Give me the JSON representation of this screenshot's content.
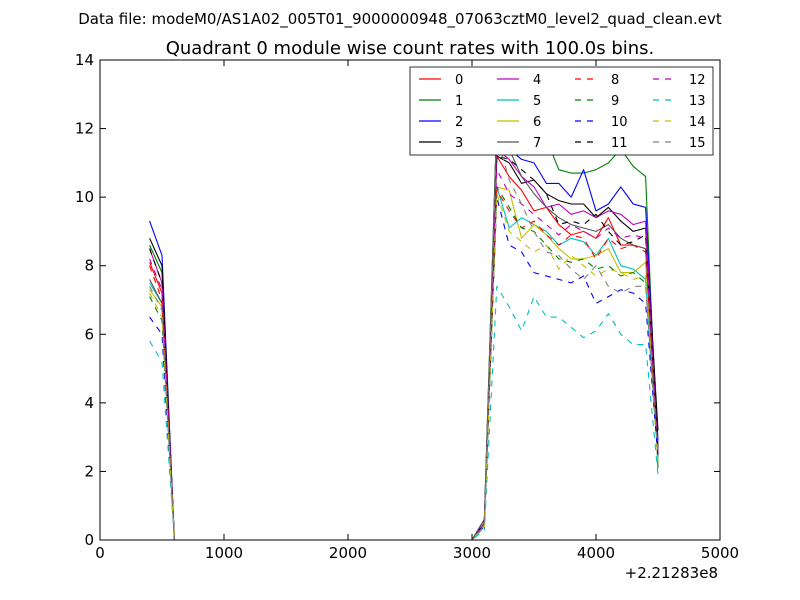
{
  "figure": {
    "suptitle": "Data file: modeM0/AS1A02_005T01_9000000948_07063cztM0_level2_quad_clean.evt"
  },
  "chart_data": {
    "type": "line",
    "title": "Quadrant 0 module wise count rates with 100.0s bins.",
    "xlabel": "",
    "ylabel": "",
    "x_offset_label": "+2.21283e8",
    "xlim": [
      0,
      5000
    ],
    "ylim": [
      0,
      14
    ],
    "xticks": [
      0,
      1000,
      2000,
      3000,
      4000,
      5000
    ],
    "yticks": [
      0,
      2,
      4,
      6,
      8,
      10,
      12,
      14
    ],
    "x": [
      400,
      500,
      600,
      3000,
      3100,
      3200,
      3300,
      3400,
      3500,
      3600,
      3700,
      3800,
      3900,
      4000,
      4100,
      4200,
      4300,
      4400,
      4500
    ],
    "legend_location": "upper-right",
    "legend_columns": 4,
    "series": [
      {
        "name": "0",
        "color": "#ff0000",
        "style": "solid",
        "values": [
          8.1,
          7.2,
          0.0,
          0.0,
          0.5,
          11.2,
          10.6,
          10.2,
          9.6,
          9.7,
          9.2,
          8.9,
          9.0,
          8.8,
          9.4,
          8.6,
          8.6,
          8.5,
          2.7
        ]
      },
      {
        "name": "1",
        "color": "#008000",
        "style": "solid",
        "values": [
          8.6,
          7.8,
          0.0,
          0.0,
          0.6,
          12.3,
          12.2,
          12.5,
          12.0,
          11.7,
          10.8,
          10.7,
          10.7,
          10.8,
          11.0,
          11.4,
          10.9,
          10.6,
          2.1
        ]
      },
      {
        "name": "2",
        "color": "#0000ff",
        "style": "solid",
        "values": [
          9.3,
          8.3,
          0.0,
          0.0,
          0.6,
          11.8,
          11.4,
          11.1,
          11.0,
          10.4,
          10.4,
          10.0,
          10.8,
          9.6,
          9.8,
          10.3,
          9.8,
          9.7,
          2.9
        ]
      },
      {
        "name": "3",
        "color": "#000000",
        "style": "solid",
        "values": [
          8.8,
          8.0,
          0.0,
          0.0,
          0.5,
          11.2,
          11.0,
          10.4,
          10.5,
          10.1,
          9.9,
          9.8,
          9.8,
          9.4,
          9.7,
          9.3,
          9.0,
          9.1,
          3.2
        ]
      },
      {
        "name": "4",
        "color": "#bf00bf",
        "style": "solid",
        "values": [
          8.5,
          7.5,
          0.0,
          0.0,
          0.5,
          11.4,
          11.1,
          10.6,
          10.3,
          9.7,
          9.8,
          9.5,
          9.6,
          9.4,
          9.6,
          9.5,
          9.2,
          9.3,
          2.5
        ]
      },
      {
        "name": "5",
        "color": "#00bfbf",
        "style": "solid",
        "values": [
          7.5,
          6.9,
          0.0,
          0.0,
          0.4,
          10.3,
          9.1,
          9.4,
          9.2,
          9.0,
          8.6,
          8.8,
          8.7,
          8.3,
          8.8,
          8.0,
          7.9,
          7.6,
          2.3
        ]
      },
      {
        "name": "6",
        "color": "#bfbf00",
        "style": "solid",
        "values": [
          7.3,
          6.8,
          0.0,
          0.0,
          0.4,
          10.3,
          10.2,
          8.8,
          9.2,
          8.9,
          8.5,
          8.2,
          8.2,
          8.3,
          8.5,
          7.8,
          7.8,
          8.1,
          2.3
        ]
      },
      {
        "name": "7",
        "color": "#555555",
        "style": "solid",
        "values": [
          7.6,
          6.9,
          0.0,
          0.0,
          0.6,
          12.2,
          11.4,
          10.6,
          10.1,
          9.7,
          9.4,
          9.2,
          9.1,
          9.0,
          9.2,
          8.8,
          8.6,
          8.5,
          2.6
        ]
      },
      {
        "name": "8",
        "color": "#ff0000",
        "style": "dashed",
        "values": [
          8.0,
          7.0,
          0.0,
          0.0,
          0.4,
          10.2,
          9.6,
          9.1,
          9.3,
          8.9,
          8.6,
          8.9,
          8.8,
          8.2,
          8.8,
          8.5,
          8.6,
          8.4,
          2.5
        ]
      },
      {
        "name": "9",
        "color": "#008000",
        "style": "dashed",
        "values": [
          7.1,
          6.4,
          0.0,
          0.0,
          0.4,
          10.3,
          9.7,
          9.1,
          9.0,
          8.6,
          8.2,
          8.1,
          8.2,
          7.9,
          8.0,
          7.7,
          7.8,
          7.5,
          2.3
        ]
      },
      {
        "name": "10",
        "color": "#0000ff",
        "style": "dashed",
        "values": [
          6.5,
          6.0,
          0.0,
          0.0,
          0.4,
          10.0,
          8.6,
          8.4,
          7.8,
          7.7,
          7.6,
          7.5,
          7.7,
          6.9,
          7.1,
          7.3,
          7.2,
          6.9,
          2.4
        ]
      },
      {
        "name": "11",
        "color": "#000000",
        "style": "dashed",
        "values": [
          8.5,
          7.5,
          0.0,
          0.0,
          0.5,
          11.2,
          11.1,
          10.8,
          10.5,
          10.1,
          9.2,
          9.3,
          9.2,
          9.5,
          9.0,
          8.6,
          8.7,
          8.9,
          2.7
        ]
      },
      {
        "name": "12",
        "color": "#bf00bf",
        "style": "dashed",
        "values": [
          8.2,
          7.3,
          0.0,
          0.0,
          0.5,
          10.8,
          10.1,
          9.8,
          9.5,
          9.2,
          8.9,
          9.2,
          9.0,
          8.8,
          9.1,
          8.8,
          8.9,
          8.8,
          2.6
        ]
      },
      {
        "name": "13",
        "color": "#00bfbf",
        "style": "dashed",
        "values": [
          5.8,
          5.2,
          0.0,
          0.0,
          0.3,
          7.4,
          6.8,
          6.1,
          7.1,
          6.5,
          6.5,
          6.2,
          5.9,
          6.1,
          6.6,
          6.0,
          5.7,
          5.7,
          1.9
        ]
      },
      {
        "name": "14",
        "color": "#bfbf00",
        "style": "dashed",
        "values": [
          7.2,
          6.5,
          0.0,
          0.0,
          0.4,
          10.1,
          9.0,
          8.7,
          8.4,
          8.6,
          7.9,
          8.3,
          8.0,
          7.7,
          7.9,
          7.8,
          7.6,
          7.7,
          2.2
        ]
      },
      {
        "name": "15",
        "color": "#808080",
        "style": "dashed",
        "values": [
          7.4,
          6.7,
          0.0,
          0.0,
          0.4,
          11.8,
          10.5,
          9.8,
          9.0,
          8.4,
          8.3,
          7.9,
          7.6,
          8.0,
          7.4,
          7.2,
          7.4,
          7.4,
          2.5
        ]
      }
    ]
  }
}
